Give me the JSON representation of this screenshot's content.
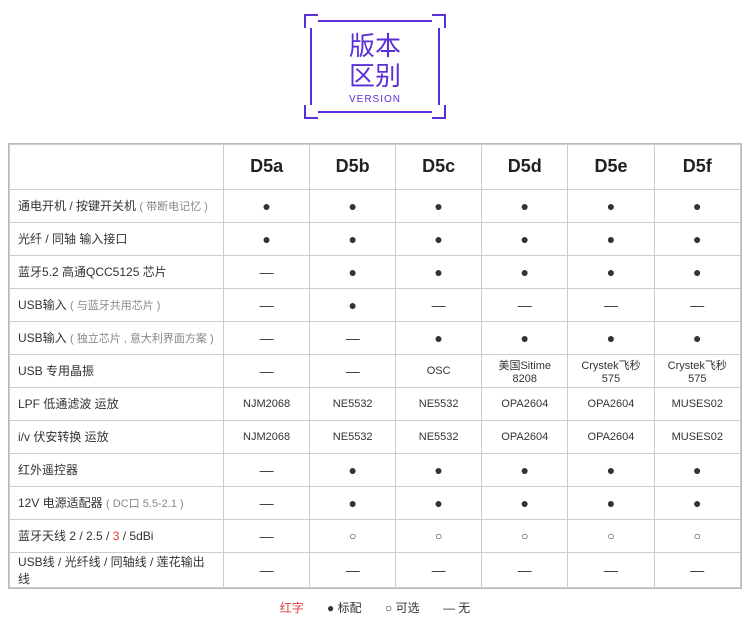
{
  "title": {
    "line1": "版本",
    "line2": "区别",
    "sub": "VERSION"
  },
  "cols": [
    "D5a",
    "D5b",
    "D5c",
    "D5d",
    "D5e",
    "D5f"
  ],
  "rows": [
    {
      "label_parts": [
        {
          "t": "通电开机 / 按键开关机 "
        },
        {
          "t": "( 带断电记忆 )",
          "cls": "paren"
        }
      ],
      "cells": [
        "●",
        "●",
        "●",
        "●",
        "●",
        "●"
      ]
    },
    {
      "label_parts": [
        {
          "t": "光纤 / 同轴 输入接口"
        }
      ],
      "cells": [
        "●",
        "●",
        "●",
        "●",
        "●",
        "●"
      ]
    },
    {
      "label_parts": [
        {
          "t": "蓝牙5.2 高通QCC5125 芯片"
        }
      ],
      "cells": [
        "—",
        "●",
        "●",
        "●",
        "●",
        "●"
      ]
    },
    {
      "label_parts": [
        {
          "t": "USB输入 "
        },
        {
          "t": "( 与蓝牙共用芯片 )",
          "cls": "paren"
        }
      ],
      "cells": [
        "—",
        "●",
        "—",
        "—",
        "—",
        "—"
      ]
    },
    {
      "label_parts": [
        {
          "t": "USB输入 "
        },
        {
          "t": "( 独立芯片 , 意大利界面方案 )",
          "cls": "paren"
        }
      ],
      "cells": [
        "—",
        "—",
        "●",
        "●",
        "●",
        "●"
      ]
    },
    {
      "label_parts": [
        {
          "t": "USB 专用晶振"
        }
      ],
      "cells": [
        "—",
        "—",
        "OSC",
        "美国Sitime 8208",
        "Crystek飞秒575",
        "Crystek飞秒575"
      ]
    },
    {
      "label_parts": [
        {
          "t": "LPF 低通滤波 运放"
        }
      ],
      "cells": [
        "NJM2068",
        "NE5532",
        "NE5532",
        "OPA2604",
        "OPA2604",
        "MUSES02"
      ]
    },
    {
      "label_parts": [
        {
          "t": "i/v 伏安转换 运放"
        }
      ],
      "cells": [
        "NJM2068",
        "NE5532",
        "NE5532",
        "OPA2604",
        "OPA2604",
        "MUSES02"
      ]
    },
    {
      "label_parts": [
        {
          "t": "红外遥控器"
        }
      ],
      "cells": [
        "—",
        "●",
        "●",
        "●",
        "●",
        "●"
      ]
    },
    {
      "label_parts": [
        {
          "t": "12V 电源适配器 "
        },
        {
          "t": "( DC口 5.5-2.1 )",
          "cls": "paren"
        }
      ],
      "cells": [
        "—",
        "●",
        "●",
        "●",
        "●",
        "●"
      ]
    },
    {
      "label_parts": [
        {
          "t": "蓝牙天线  2 / 2.5 / "
        },
        {
          "t": "3",
          "cls": "red"
        },
        {
          "t": " / 5dBi"
        }
      ],
      "cells": [
        "—",
        "○",
        "○",
        "○",
        "○",
        "○"
      ]
    },
    {
      "label_parts": [
        {
          "t": "USB线 / 光纤线 / 同轴线 / 莲花输出线"
        }
      ],
      "cells": [
        "—",
        "—",
        "—",
        "—",
        "—",
        "—"
      ]
    }
  ],
  "legend": {
    "red": "红字",
    "standard_symbol": "●",
    "standard": "标配",
    "optional_symbol": "○",
    "optional": "可选",
    "none_symbol": "—",
    "none": "无"
  }
}
